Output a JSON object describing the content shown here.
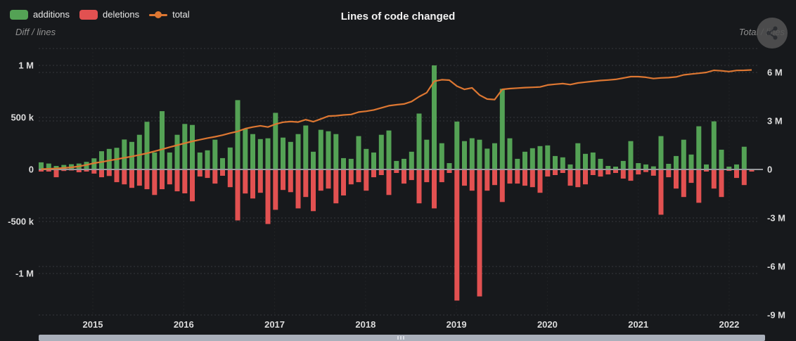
{
  "header": {
    "title": "Lines of code changed",
    "left_axis_subtitle": "Diff / lines",
    "right_axis_subtitle": "Total / lines",
    "legend": [
      {
        "label": "additions",
        "marker": "rect",
        "color": "#54a255"
      },
      {
        "label": "deletions",
        "marker": "rect",
        "color": "#e25151"
      },
      {
        "label": "total",
        "marker": "line-dot",
        "color": "#dd7732"
      }
    ]
  },
  "colors": {
    "background": "#17191c",
    "additions": "#54a255",
    "deletions": "#e25151",
    "total_line": "#dd7732",
    "grid": "#3b3e42",
    "zero_line": "#97999c",
    "tick_text": "#dcdcdc",
    "scrollbar": "#aab0bb"
  },
  "axes": {
    "left_ticks": [
      {
        "label": "1 M",
        "value_k": 1000
      },
      {
        "label": "500 k",
        "value_k": 500
      },
      {
        "label": "0",
        "value_k": 0
      },
      {
        "label": "-500 k",
        "value_k": -500
      },
      {
        "label": "-1 M",
        "value_k": -1000
      }
    ],
    "right_ticks": [
      {
        "label": "6 M",
        "value_m": 6
      },
      {
        "label": "3 M",
        "value_m": 3
      },
      {
        "label": "0",
        "value_m": 0
      },
      {
        "label": "-3 M",
        "value_m": -3
      },
      {
        "label": "-6 M",
        "value_m": -6
      },
      {
        "label": "-9 M",
        "value_m": -9
      }
    ],
    "year_labels": [
      "2015",
      "2016",
      "2017",
      "2018",
      "2019",
      "2020",
      "2021",
      "2022"
    ]
  },
  "chart_data": {
    "type": "combo-bar-line",
    "title": "Lines of code changed",
    "x_unit": "month",
    "x": [
      "2014-06",
      "2014-07",
      "2014-08",
      "2014-09",
      "2014-10",
      "2014-11",
      "2014-12",
      "2015-01",
      "2015-02",
      "2015-03",
      "2015-04",
      "2015-05",
      "2015-06",
      "2015-07",
      "2015-08",
      "2015-09",
      "2015-10",
      "2015-11",
      "2015-12",
      "2016-01",
      "2016-02",
      "2016-03",
      "2016-04",
      "2016-05",
      "2016-06",
      "2016-07",
      "2016-08",
      "2016-09",
      "2016-10",
      "2016-11",
      "2016-12",
      "2017-01",
      "2017-02",
      "2017-03",
      "2017-04",
      "2017-05",
      "2017-06",
      "2017-07",
      "2017-08",
      "2017-09",
      "2017-10",
      "2017-11",
      "2017-12",
      "2018-01",
      "2018-02",
      "2018-03",
      "2018-04",
      "2018-05",
      "2018-06",
      "2018-07",
      "2018-08",
      "2018-09",
      "2018-10",
      "2018-11",
      "2018-12",
      "2019-01",
      "2019-02",
      "2019-03",
      "2019-04",
      "2019-05",
      "2019-06",
      "2019-07",
      "2019-08",
      "2019-09",
      "2019-10",
      "2019-11",
      "2019-12",
      "2020-01",
      "2020-02",
      "2020-03",
      "2020-04",
      "2020-05",
      "2020-06",
      "2020-07",
      "2020-08",
      "2020-09",
      "2020-10",
      "2020-11",
      "2020-12",
      "2021-01",
      "2021-02",
      "2021-03",
      "2021-04",
      "2021-05",
      "2021-06",
      "2021-07",
      "2021-08",
      "2021-09",
      "2021-10",
      "2021-11",
      "2021-12",
      "2022-01",
      "2022-02",
      "2022-03",
      "2022-04"
    ],
    "series": [
      {
        "name": "additions",
        "type": "bar",
        "axis": "left",
        "unit": "k lines",
        "values": [
          68,
          57,
          34,
          43,
          50,
          57,
          73,
          107,
          175,
          197,
          208,
          288,
          265,
          333,
          458,
          163,
          560,
          163,
          333,
          437,
          428,
          163,
          184,
          286,
          109,
          211,
          666,
          388,
          340,
          292,
          299,
          544,
          306,
          265,
          340,
          422,
          170,
          381,
          367,
          340,
          109,
          102,
          320,
          197,
          163,
          333,
          374,
          82,
          102,
          170,
          537,
          286,
          1000,
          252,
          61,
          460,
          272,
          300,
          286,
          200,
          252,
          775,
          299,
          102,
          170,
          204,
          224,
          231,
          129,
          116,
          48,
          252,
          150,
          163,
          102,
          34,
          27,
          82,
          272,
          61,
          48,
          30,
          320,
          54,
          129,
          286,
          143,
          415,
          48,
          462,
          190,
          27,
          48,
          218,
          7
        ]
      },
      {
        "name": "deletions",
        "type": "bar",
        "axis": "left",
        "unit": "k lines",
        "values": [
          -20,
          -20,
          -75,
          -15,
          -10,
          -27,
          -20,
          -40,
          -75,
          -63,
          -122,
          -143,
          -177,
          -156,
          -190,
          -245,
          -190,
          -143,
          -210,
          -230,
          -306,
          -68,
          -82,
          -136,
          -61,
          -170,
          -490,
          -231,
          -279,
          -224,
          -524,
          -388,
          -197,
          -218,
          -374,
          -265,
          -401,
          -204,
          -184,
          -326,
          -250,
          -143,
          -122,
          -204,
          -75,
          -54,
          -245,
          -34,
          -136,
          -102,
          -326,
          -122,
          -374,
          -122,
          -34,
          -1260,
          -156,
          -204,
          -1220,
          -204,
          -150,
          -313,
          -136,
          -136,
          -156,
          -170,
          -224,
          -68,
          -54,
          -34,
          -156,
          -170,
          -143,
          -54,
          -68,
          -48,
          -34,
          -88,
          -109,
          -48,
          -25,
          -60,
          -435,
          -75,
          -184,
          -265,
          -129,
          -320,
          -20,
          -184,
          -265,
          -14,
          -82,
          -150,
          -20
        ]
      },
      {
        "name": "total",
        "type": "line",
        "axis": "right",
        "unit": "M lines",
        "values": [
          0.02,
          0.04,
          0.06,
          0.09,
          0.13,
          0.19,
          0.28,
          0.39,
          0.46,
          0.55,
          0.63,
          0.72,
          0.8,
          0.9,
          1.0,
          1.12,
          1.25,
          1.38,
          1.5,
          1.62,
          1.74,
          1.84,
          1.94,
          2.02,
          2.12,
          2.25,
          2.35,
          2.52,
          2.62,
          2.7,
          2.62,
          2.8,
          2.92,
          2.96,
          2.93,
          3.08,
          2.95,
          3.12,
          3.3,
          3.32,
          3.37,
          3.4,
          3.55,
          3.6,
          3.68,
          3.81,
          3.94,
          4.0,
          4.05,
          4.2,
          4.5,
          4.75,
          5.45,
          5.55,
          5.52,
          5.15,
          4.95,
          5.05,
          4.6,
          4.35,
          4.32,
          4.95,
          5.0,
          5.03,
          5.06,
          5.08,
          5.1,
          5.22,
          5.27,
          5.31,
          5.25,
          5.35,
          5.4,
          5.45,
          5.5,
          5.53,
          5.57,
          5.65,
          5.74,
          5.74,
          5.7,
          5.62,
          5.66,
          5.68,
          5.72,
          5.85,
          5.9,
          5.95,
          6.0,
          6.13,
          6.1,
          6.05,
          6.12,
          6.13,
          6.15
        ]
      }
    ],
    "left_axis": {
      "label": "Diff / lines",
      "range_k": [
        -1350,
        1150
      ]
    },
    "right_axis": {
      "label": "Total / lines",
      "range_m": [
        -9.5,
        7
      ]
    },
    "grid": "dashed-horizontal-both-axes",
    "legend_position": "top-left"
  },
  "scrollbar": {
    "orientation": "horizontal",
    "position": "bottom"
  }
}
